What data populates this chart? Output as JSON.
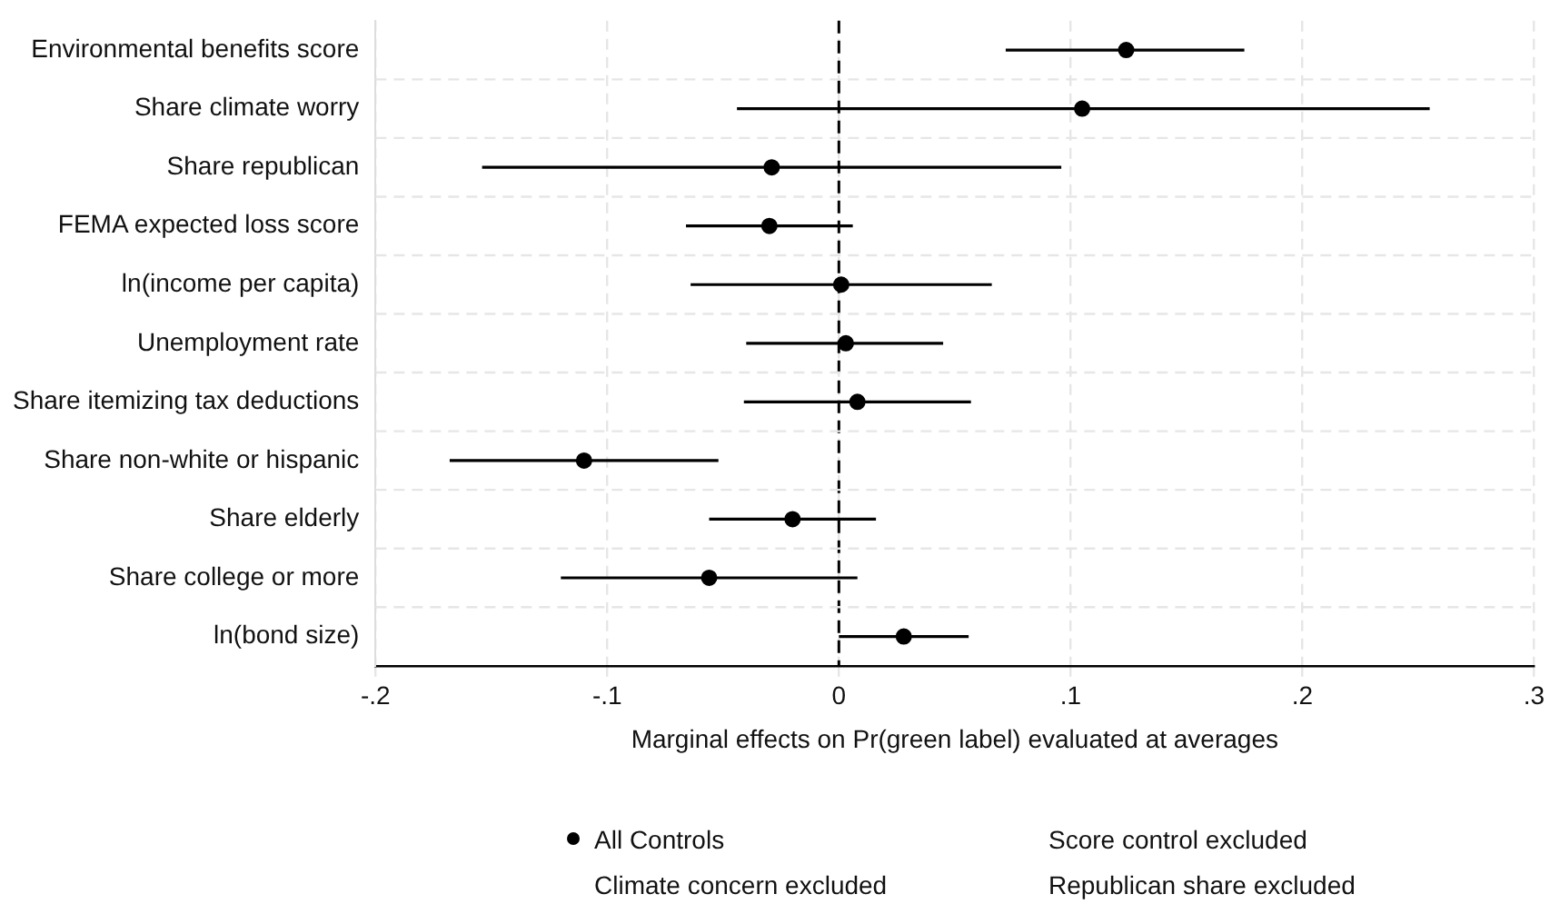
{
  "chart_data": {
    "type": "scatter",
    "orientation": "horizontal",
    "xlabel": "Marginal effects on Pr(green label) evaluated at averages",
    "categories": [
      "Environmental benefits score",
      "Share climate worry",
      "Share republican",
      "FEMA expected loss score",
      "ln(income per capita)",
      "Unemployment rate",
      "Share itemizing tax deductions",
      "Share non-white or hispanic",
      "Share elderly",
      "Share college or more",
      "ln(bond size)"
    ],
    "series": [
      {
        "name": "All Controls",
        "color": "#000000",
        "values": [
          0.124,
          0.105,
          -0.029,
          -0.03,
          0.001,
          0.003,
          0.008,
          -0.11,
          -0.02,
          -0.056,
          0.028
        ],
        "errors": [
          [
            0.072,
            0.175
          ],
          [
            -0.044,
            0.255
          ],
          [
            -0.154,
            0.096
          ],
          [
            -0.066,
            0.006
          ],
          [
            -0.064,
            0.066
          ],
          [
            -0.04,
            0.045
          ],
          [
            -0.041,
            0.057
          ],
          [
            -0.168,
            -0.052
          ],
          [
            -0.056,
            0.016
          ],
          [
            -0.12,
            0.008
          ],
          [
            0,
            0.056
          ]
        ]
      }
    ],
    "annotations": [
      "Score control excluded",
      "Climate concern excluded",
      "Republican share excluded"
    ],
    "xlim": [
      -0.2,
      0.3
    ],
    "xticks": [
      {
        "value": -0.2,
        "label": "-.2"
      },
      {
        "value": -0.1,
        "label": "-.1"
      },
      0,
      {
        "value": 0.1,
        "label": ".1"
      },
      {
        "value": 0.2,
        "label": ".2"
      },
      {
        "value": 0.3,
        "label": ".3"
      }
    ],
    "ref_lines": [
      {
        "axis": "x",
        "value": 0,
        "line_style": "dashed",
        "color": "#000000"
      }
    ],
    "grid": true,
    "legend": "bottom",
    "marker": "circle"
  }
}
